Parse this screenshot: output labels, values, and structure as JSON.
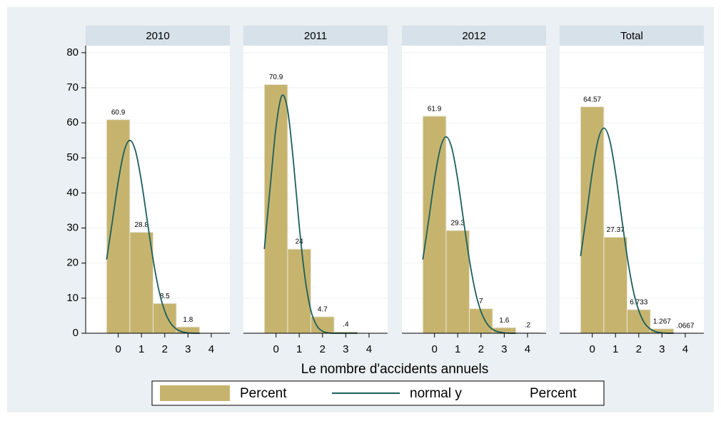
{
  "chart_data": {
    "type": "histogram",
    "x_label": "Le nombre d'accidents annuels",
    "ylim": [
      0,
      82
    ],
    "yticks": [
      0,
      10,
      20,
      30,
      40,
      50,
      60,
      70,
      80
    ],
    "xlim": [
      -1.4,
      4.8
    ],
    "xticks": [
      0,
      1,
      2,
      3,
      4
    ],
    "grid": true,
    "bar_color": "#c6b46e",
    "line_color": "#1d5f5c",
    "legend": [
      "Percent",
      "normal y",
      "Percent"
    ],
    "curve_x": [
      -0.5,
      -0.25,
      0,
      0.25,
      0.5,
      0.75,
      1,
      1.25,
      1.5,
      1.75,
      2,
      2.25,
      2.5,
      2.75,
      3,
      3.25,
      3.5
    ],
    "panels": [
      {
        "title": "2010",
        "bins": [
          -0.5,
          0.5,
          1.5,
          2.5,
          3.5
        ],
        "values": [
          60.9,
          28.8,
          8.5,
          1.8
        ],
        "value_labels": [
          "60.9",
          "28.8",
          "8.5",
          "1.8"
        ],
        "curve": [
          21.0,
          32.0,
          43.2,
          51.8,
          55.0,
          51.8,
          43.2,
          32.0,
          21.0,
          12.2,
          6.3,
          2.9,
          1.2,
          0.4,
          0.1,
          0,
          0
        ]
      },
      {
        "title": "2011",
        "bins": [
          -0.5,
          0.5,
          1.5,
          2.5,
          3.5
        ],
        "values": [
          70.9,
          24,
          4.7,
          0.4
        ],
        "value_labels": [
          "70.9",
          "24",
          "4.7",
          ".4"
        ],
        "curve": [
          24.0,
          41.6,
          58.7,
          67.7,
          63.7,
          48.9,
          30.6,
          15.7,
          6.5,
          2.2,
          0.6,
          0.1,
          0,
          0,
          0,
          0,
          0
        ]
      },
      {
        "title": "2012",
        "bins": [
          -0.5,
          0.5,
          1.5,
          2.5,
          3.5,
          4.5
        ],
        "values": [
          61.9,
          29.3,
          7,
          1.6,
          0.2
        ],
        "value_labels": [
          "61.9",
          "29.3",
          "7",
          "1.6",
          ".2"
        ],
        "curve": [
          21.0,
          32.2,
          43.8,
          52.7,
          56.0,
          52.7,
          43.8,
          32.2,
          21.0,
          12.1,
          6.2,
          2.8,
          1.1,
          0.4,
          0.1,
          0,
          0
        ]
      },
      {
        "title": "Total",
        "bins": [
          -0.5,
          0.5,
          1.5,
          2.5,
          3.5,
          4.5
        ],
        "values": [
          64.57,
          27.37,
          6.733,
          1.267,
          0.0667
        ],
        "value_labels": [
          "64.57",
          "27.37",
          "6.733",
          "1.267",
          ".0667"
        ],
        "curve": [
          22.0,
          33.6,
          45.8,
          55.1,
          58.5,
          55.1,
          45.8,
          33.6,
          22.0,
          12.6,
          6.5,
          2.9,
          1.2,
          0.4,
          0.1,
          0,
          0
        ]
      }
    ]
  }
}
